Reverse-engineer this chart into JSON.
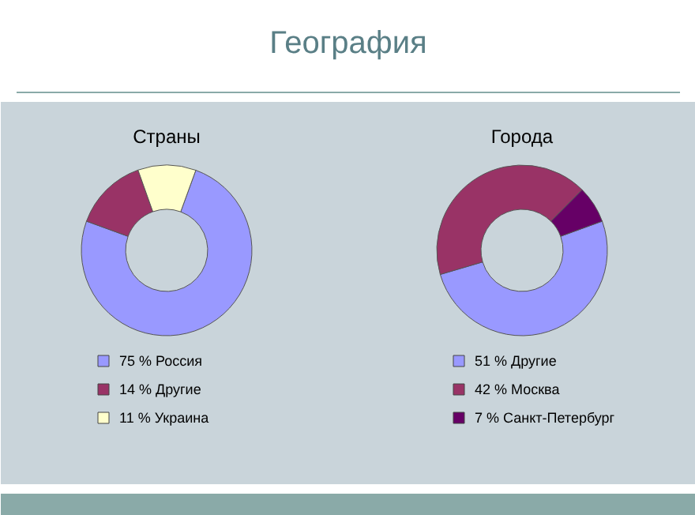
{
  "chart_data": [
    {
      "type": "donut",
      "title": "Страны",
      "annotations": [
        "География"
      ],
      "categories": [
        "Россия",
        "Другие",
        "Украина"
      ],
      "values": [
        75,
        14,
        11
      ],
      "value_labels": [
        "75 %",
        "14 %",
        "11 %"
      ],
      "colors": [
        "#9999ff",
        "#993366",
        "#ffffcc"
      ],
      "legend": "bottom"
    },
    {
      "type": "donut",
      "title": "Города",
      "categories": [
        "Другие",
        "Москва",
        "Санкт-Петербург"
      ],
      "values": [
        51,
        42,
        7
      ],
      "value_labels": [
        "51 %",
        "42 %",
        "7 %"
      ],
      "colors": [
        "#9999ff",
        "#993366",
        "#660066"
      ],
      "legend": "bottom"
    }
  ]
}
